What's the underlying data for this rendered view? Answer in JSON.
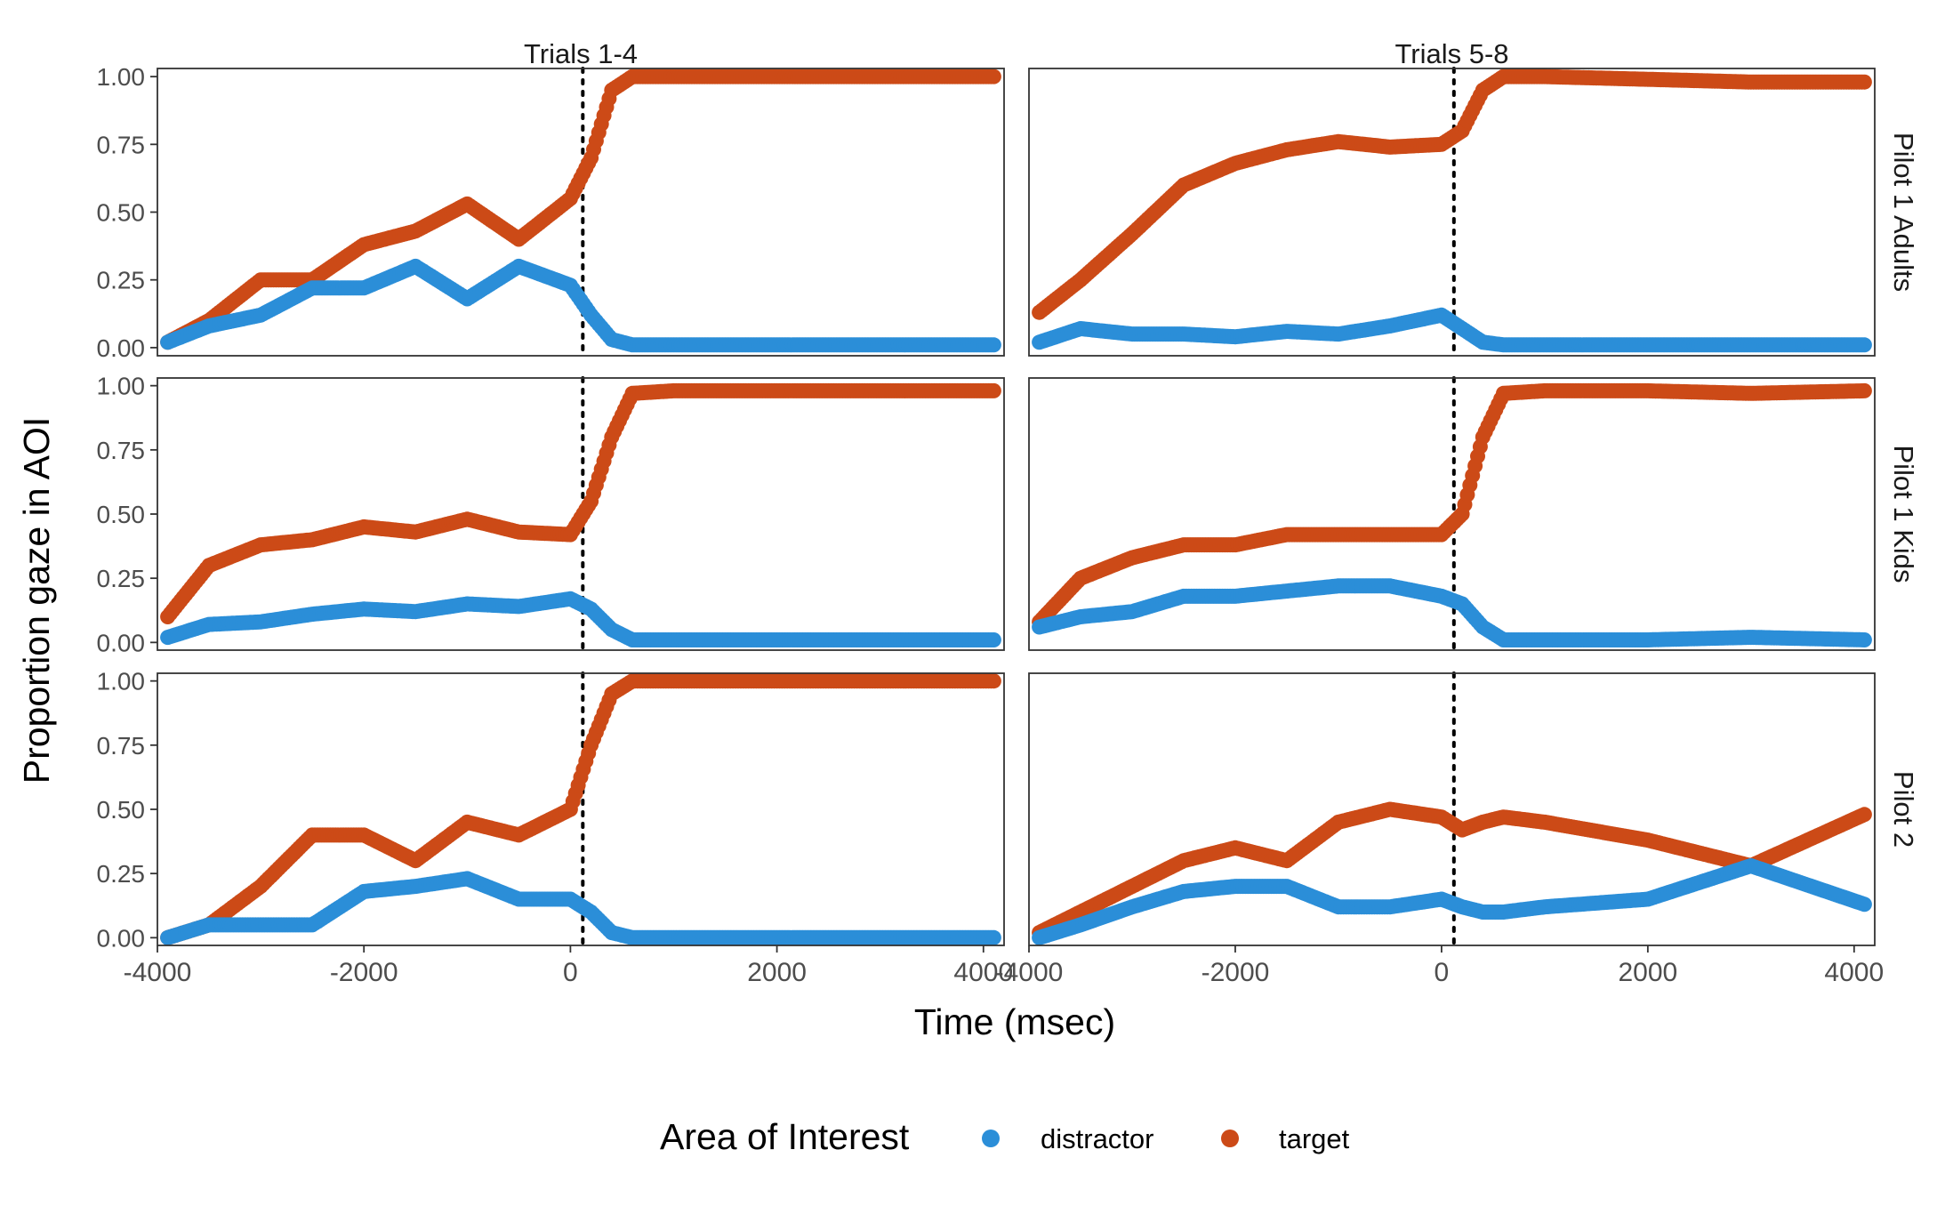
{
  "chart_data": {
    "type": "scatter",
    "title": "",
    "xlabel": "Time (msec)",
    "ylabel": "Proportion gaze in AOI",
    "xlim": [
      -4000,
      4200
    ],
    "ylim": [
      -0.03,
      1.03
    ],
    "x_ticks": [
      -4000,
      -2000,
      0,
      2000,
      4000
    ],
    "x_tick_labels": [
      "-4000",
      "-2000",
      "0",
      "2000",
      "4000"
    ],
    "y_ticks": [
      0,
      0.25,
      0.5,
      0.75,
      1
    ],
    "y_tick_labels": [
      "0.00",
      "0.25",
      "0.50",
      "0.75",
      "1.00"
    ],
    "reference_line_x": 120,
    "column_facets": [
      "Trials 1-4",
      "Trials 5-8"
    ],
    "row_facets": [
      "Pilot 1 Adults",
      "Pilot 1 Kids",
      "Pilot 2"
    ],
    "legend": {
      "title": "Area of Interest",
      "position": "bottom",
      "entries": [
        {
          "name": "distractor",
          "color": "#2b8ed8"
        },
        {
          "name": "target",
          "color": "#cc4a17"
        }
      ]
    },
    "x_knots": [
      -3900,
      -3500,
      -3000,
      -2500,
      -2000,
      -1500,
      -1000,
      -500,
      0,
      200,
      400,
      600,
      1000,
      2000,
      3000,
      4100
    ],
    "panels": [
      {
        "row": "Pilot 1 Adults",
        "column": "Trials 1-4",
        "series": [
          {
            "name": "target",
            "values": [
              0.02,
              0.1,
              0.25,
              0.25,
              0.38,
              0.43,
              0.53,
              0.4,
              0.55,
              0.7,
              0.95,
              1.0,
              1.0,
              1.0,
              1.0,
              1.0
            ]
          },
          {
            "name": "distractor",
            "values": [
              0.02,
              0.08,
              0.12,
              0.22,
              0.22,
              0.3,
              0.18,
              0.3,
              0.23,
              0.12,
              0.03,
              0.01,
              0.01,
              0.01,
              0.01,
              0.01
            ]
          }
        ]
      },
      {
        "row": "Pilot 1 Adults",
        "column": "Trials 5-8",
        "series": [
          {
            "name": "target",
            "values": [
              0.13,
              0.25,
              0.42,
              0.6,
              0.68,
              0.73,
              0.76,
              0.74,
              0.75,
              0.8,
              0.95,
              1.0,
              1.0,
              0.99,
              0.98,
              0.98
            ]
          },
          {
            "name": "distractor",
            "values": [
              0.02,
              0.07,
              0.05,
              0.05,
              0.04,
              0.06,
              0.05,
              0.08,
              0.12,
              0.07,
              0.02,
              0.01,
              0.01,
              0.01,
              0.01,
              0.01
            ]
          }
        ]
      },
      {
        "row": "Pilot 1 Kids",
        "column": "Trials 1-4",
        "series": [
          {
            "name": "target",
            "values": [
              0.1,
              0.3,
              0.38,
              0.4,
              0.45,
              0.43,
              0.48,
              0.43,
              0.42,
              0.55,
              0.8,
              0.97,
              0.98,
              0.98,
              0.98,
              0.98
            ]
          },
          {
            "name": "distractor",
            "values": [
              0.02,
              0.07,
              0.08,
              0.11,
              0.13,
              0.12,
              0.15,
              0.14,
              0.17,
              0.13,
              0.05,
              0.01,
              0.01,
              0.01,
              0.01,
              0.01
            ]
          }
        ]
      },
      {
        "row": "Pilot 1 Kids",
        "column": "Trials 5-8",
        "series": [
          {
            "name": "target",
            "values": [
              0.08,
              0.25,
              0.33,
              0.38,
              0.38,
              0.42,
              0.42,
              0.42,
              0.42,
              0.5,
              0.8,
              0.97,
              0.98,
              0.98,
              0.97,
              0.98
            ]
          },
          {
            "name": "distractor",
            "values": [
              0.06,
              0.1,
              0.12,
              0.18,
              0.18,
              0.2,
              0.22,
              0.22,
              0.18,
              0.15,
              0.06,
              0.01,
              0.01,
              0.01,
              0.02,
              0.01
            ]
          }
        ]
      },
      {
        "row": "Pilot 2",
        "column": "Trials 1-4",
        "series": [
          {
            "name": "target",
            "values": [
              0.0,
              0.05,
              0.2,
              0.4,
              0.4,
              0.3,
              0.45,
              0.4,
              0.5,
              0.75,
              0.95,
              1.0,
              1.0,
              1.0,
              1.0,
              1.0
            ]
          },
          {
            "name": "distractor",
            "values": [
              0.0,
              0.05,
              0.05,
              0.05,
              0.18,
              0.2,
              0.23,
              0.15,
              0.15,
              0.1,
              0.02,
              0.0,
              0.0,
              0.0,
              0.0,
              0.0
            ]
          }
        ]
      },
      {
        "row": "Pilot 2",
        "column": "Trials 5-8",
        "series": [
          {
            "name": "target",
            "values": [
              0.02,
              0.1,
              0.2,
              0.3,
              0.35,
              0.3,
              0.45,
              0.5,
              0.47,
              0.42,
              0.45,
              0.47,
              0.45,
              0.38,
              0.28,
              0.48
            ]
          },
          {
            "name": "distractor",
            "values": [
              0.0,
              0.05,
              0.12,
              0.18,
              0.2,
              0.2,
              0.12,
              0.12,
              0.15,
              0.12,
              0.1,
              0.1,
              0.12,
              0.15,
              0.28,
              0.13
            ]
          }
        ]
      }
    ]
  }
}
